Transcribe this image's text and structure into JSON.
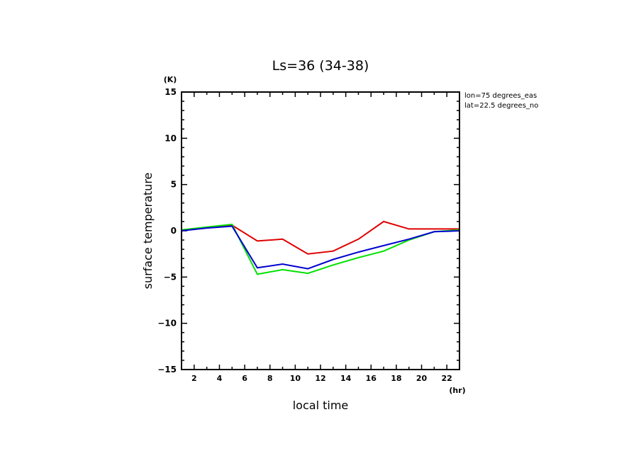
{
  "chart_data": {
    "type": "line",
    "title": "Ls=36 (34-38)",
    "xlabel": "local time",
    "ylabel": "surface temperature",
    "x_unit": "(hr)",
    "y_unit": "(K)",
    "xlim": [
      1,
      23
    ],
    "ylim": [
      -15,
      15
    ],
    "xticks": [
      2,
      4,
      6,
      8,
      10,
      12,
      14,
      16,
      18,
      20,
      22
    ],
    "yticks": [
      -15,
      -10,
      -5,
      0,
      5,
      10,
      15
    ],
    "annotations": [
      "lon=75 degrees_eas",
      "lat=22.5 degrees_no"
    ],
    "x": [
      1,
      3,
      5,
      7,
      9,
      11,
      13,
      15,
      17,
      19,
      21,
      23
    ],
    "series": [
      {
        "name": "red",
        "color": "#e00000",
        "values": [
          0.1,
          0.35,
          0.6,
          -1.1,
          -0.9,
          -2.5,
          -2.2,
          -0.9,
          1.0,
          0.2,
          0.2,
          0.2
        ]
      },
      {
        "name": "green",
        "color": "#00e000",
        "values": [
          0.1,
          0.4,
          0.7,
          -4.7,
          -4.2,
          -4.6,
          -3.7,
          -2.9,
          -2.2,
          -1.0,
          -0.1,
          0.1
        ]
      },
      {
        "name": "blue",
        "color": "#0000d0",
        "values": [
          0.0,
          0.3,
          0.5,
          -4.0,
          -3.6,
          -4.1,
          -3.1,
          -2.3,
          -1.6,
          -0.9,
          -0.1,
          0.0
        ]
      }
    ]
  }
}
